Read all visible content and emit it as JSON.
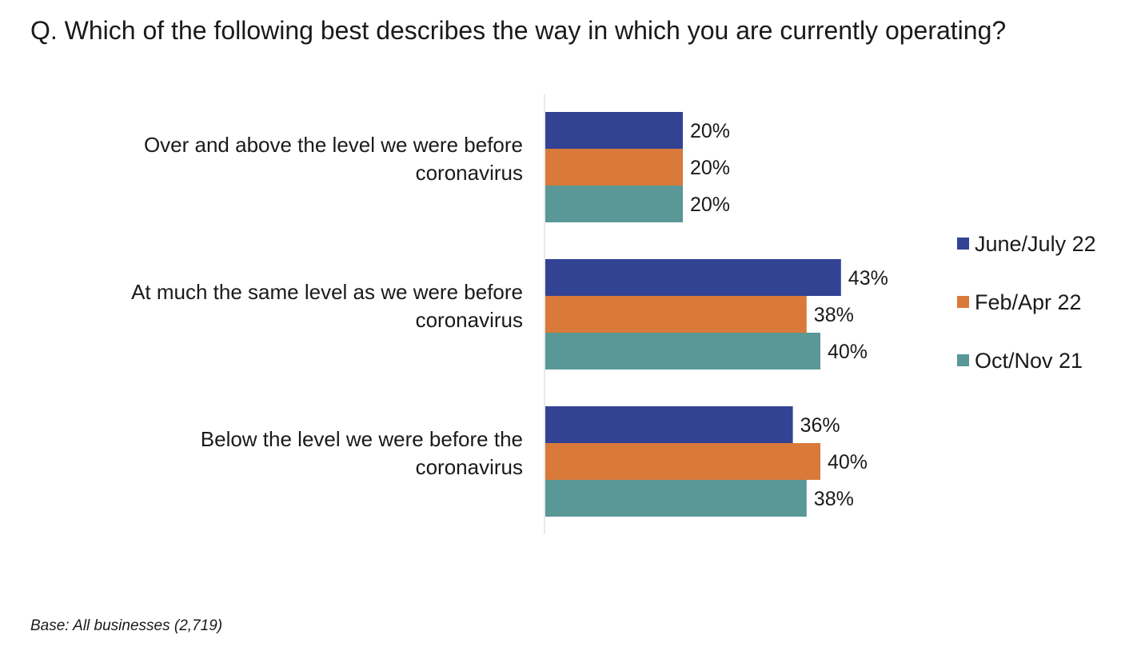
{
  "title": "Q. Which of the following best describes the way in which you are currently operating?",
  "footnote": "Base: All businesses (2,719)",
  "chart_data": {
    "type": "bar",
    "orientation": "horizontal",
    "title": "Q. Which of the following best describes the way in which you are currently operating?",
    "categories": [
      [
        "Over and above the level we were before",
        "coronavirus"
      ],
      [
        "At much the same level as we were before",
        "coronavirus"
      ],
      [
        "Below the level we were before the",
        "coronavirus"
      ]
    ],
    "series": [
      {
        "name": "June/July 22",
        "color": "#334394",
        "values": [
          20,
          43,
          36
        ]
      },
      {
        "name": "Feb/Apr 22",
        "color": "#D9793A",
        "values": [
          20,
          38,
          40
        ]
      },
      {
        "name": "Oct/Nov 21",
        "color": "#5A9797",
        "values": [
          20,
          40,
          38
        ]
      }
    ],
    "value_suffix": "%",
    "xlim": [
      0,
      100
    ],
    "grid": false,
    "legend_position": "right",
    "xlabel": "",
    "ylabel": ""
  }
}
